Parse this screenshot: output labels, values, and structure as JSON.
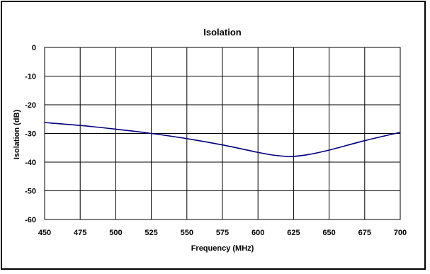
{
  "chart_data": {
    "type": "line",
    "title": "Isolation",
    "xlabel": "Frequency (MHz)",
    "ylabel": "Isolation (dB)",
    "xlim": [
      450,
      700
    ],
    "ylim": [
      -60,
      0
    ],
    "x_ticks": [
      "450",
      "475",
      "500",
      "525",
      "550",
      "575",
      "600",
      "625",
      "650",
      "675",
      "700"
    ],
    "y_ticks": [
      "0",
      "-10",
      "-20",
      "-30",
      "-40",
      "-50",
      "-60"
    ],
    "grid": true,
    "legend": "none",
    "series": [
      {
        "color": "#000080",
        "x": [
          450,
          475,
          500,
          525,
          550,
          575,
          600,
          610,
          620,
          625,
          635,
          650,
          675,
          700
        ],
        "y": [
          -26.2,
          -27.2,
          -28.5,
          -30.0,
          -31.8,
          -34.0,
          -36.6,
          -37.5,
          -38.0,
          -38.0,
          -37.4,
          -35.8,
          -32.5,
          -29.6
        ]
      }
    ]
  }
}
